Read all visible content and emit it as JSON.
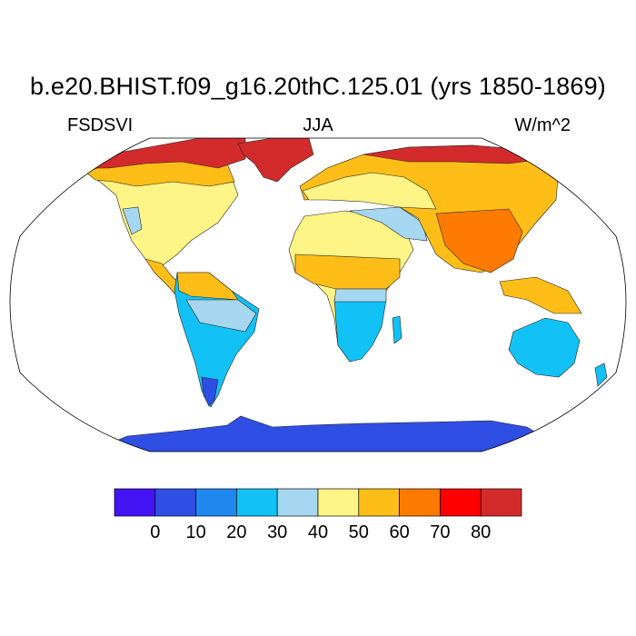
{
  "title": "b.e20.BHIST.f09_g16.20thC.125.01 (yrs 1850-1869)",
  "left_label": "FSDSVI",
  "center_label": "JJA",
  "right_label": "W/m^2",
  "colorbar": {
    "colors": [
      "#4414f4",
      "#2f4ee3",
      "#1e88f0",
      "#12c2f6",
      "#a5d7f0",
      "#fff486",
      "#ffbe17",
      "#ff7a00",
      "#fe0000",
      "#d32b2b"
    ],
    "labels": [
      "0",
      "10",
      "20",
      "30",
      "40",
      "50",
      "60",
      "70",
      "80"
    ]
  },
  "land_colors": {
    "antarctica": "#2f4ee3",
    "greenland": "#d32b2b",
    "arctic_islands": "#d32b2b",
    "australia": "#12c2f6",
    "south_america_south": "#12c2f6",
    "southern_africa": "#12c2f6",
    "eurasia": "#ffbe17",
    "north_america": "#fff486"
  }
}
